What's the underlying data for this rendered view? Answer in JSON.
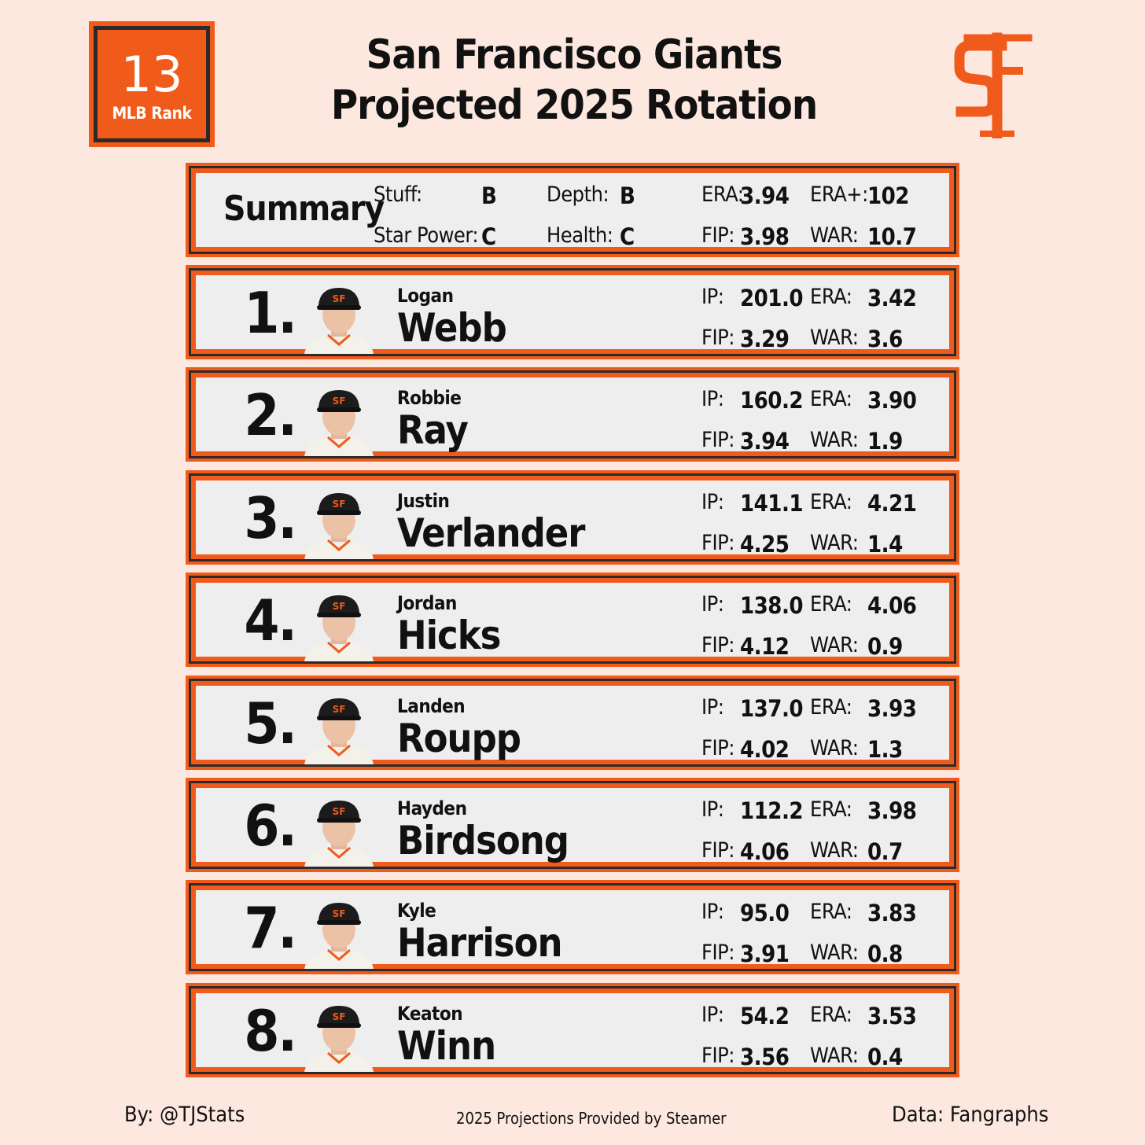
{
  "rank": {
    "number": "13",
    "label": "MLB Rank"
  },
  "title": {
    "line1": "San Francisco Giants",
    "line2": "Projected 2025 Rotation"
  },
  "colors": {
    "accent": "#f05a1a",
    "dark": "#2b2b2b",
    "card_bg": "#eeeeee",
    "page_bg": "#fde8e0"
  },
  "summary": {
    "title": "Summary",
    "stuff_label": "Stuff:",
    "stuff": "B",
    "star_power_label": "Star Power:",
    "star_power": "C",
    "depth_label": "Depth:",
    "depth": "B",
    "health_label": "Health:",
    "health": "C",
    "era_label": "ERA:",
    "era": "3.94",
    "fip_label": "FIP:",
    "fip": "3.98",
    "era_plus_label": "ERA+:",
    "era_plus": "102",
    "war_label": "WAR:",
    "war": "10.7"
  },
  "stat_labels": {
    "ip": "IP:",
    "era": "ERA:",
    "fip": "FIP:",
    "war": "WAR:"
  },
  "players": [
    {
      "rank": "1.",
      "first": "Logan",
      "last": "Webb",
      "ip": "201.0",
      "era": "3.42",
      "fip": "3.29",
      "war": "3.6"
    },
    {
      "rank": "2.",
      "first": "Robbie",
      "last": "Ray",
      "ip": "160.2",
      "era": "3.90",
      "fip": "3.94",
      "war": "1.9"
    },
    {
      "rank": "3.",
      "first": "Justin",
      "last": "Verlander",
      "ip": "141.1",
      "era": "4.21",
      "fip": "4.25",
      "war": "1.4"
    },
    {
      "rank": "4.",
      "first": "Jordan",
      "last": "Hicks",
      "ip": "138.0",
      "era": "4.06",
      "fip": "4.12",
      "war": "0.9"
    },
    {
      "rank": "5.",
      "first": "Landen",
      "last": "Roupp",
      "ip": "137.0",
      "era": "3.93",
      "fip": "4.02",
      "war": "1.3"
    },
    {
      "rank": "6.",
      "first": "Hayden",
      "last": "Birdsong",
      "ip": "112.2",
      "era": "3.98",
      "fip": "4.06",
      "war": "0.7"
    },
    {
      "rank": "7.",
      "first": "Kyle",
      "last": "Harrison",
      "ip": "95.0",
      "era": "3.83",
      "fip": "3.91",
      "war": "0.8"
    },
    {
      "rank": "8.",
      "first": "Keaton",
      "last": "Winn",
      "ip": "54.2",
      "era": "3.53",
      "fip": "3.56",
      "war": "0.4"
    }
  ],
  "footer": {
    "by": "By: @TJStats",
    "source": "2025 Projections Provided by Steamer",
    "data": "Data: Fangraphs"
  }
}
